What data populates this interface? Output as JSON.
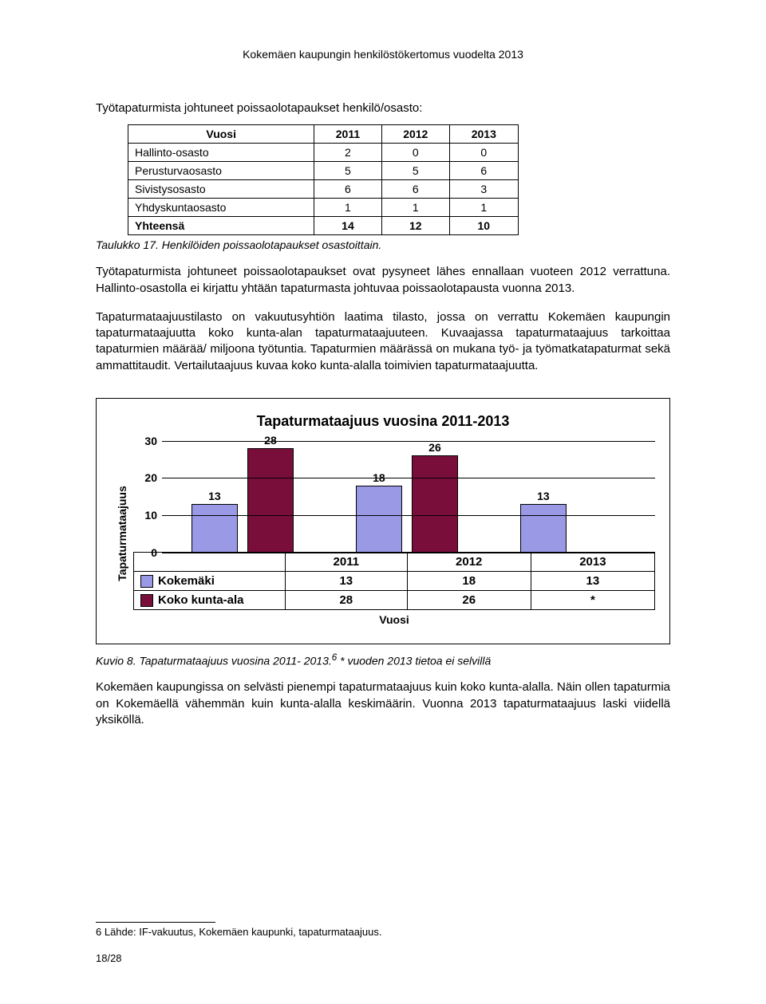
{
  "header_title": "Kokemäen kaupungin henkilöstökertomus vuodelta 2013",
  "section_heading": "Työtapaturmista johtuneet poissaolotapaukset henkilö/osasto:",
  "table1": {
    "header": [
      "Vuosi",
      "2011",
      "2012",
      "2013"
    ],
    "rows": [
      [
        "Hallinto-osasto",
        "2",
        "0",
        "0"
      ],
      [
        "Perusturvaosasto",
        "5",
        "5",
        "6"
      ],
      [
        "Sivistysosasto",
        "6",
        "6",
        "3"
      ],
      [
        "Yhdyskuntaosasto",
        "1",
        "1",
        "1"
      ]
    ],
    "total_row": [
      "Yhteensä",
      "14",
      "12",
      "10"
    ]
  },
  "table1_caption": "Taulukko 17. Henkilöiden poissaolotapaukset osastoittain.",
  "para1": "Työtapaturmista johtuneet poissaolotapaukset ovat pysyneet lähes ennallaan vuoteen 2012 verrattuna. Hallinto-osastolla ei kirjattu yhtään tapaturmasta johtuvaa poissaolotapausta vuonna 2013.",
  "para2": "Tapaturmataajuustilasto on vakuutusyhtiön laatima tilasto, jossa on verrattu Kokemäen kaupungin tapaturmataajuutta koko kunta-alan tapaturmataajuuteen. Kuvaajassa tapaturmataajuus tarkoittaa tapaturmien määrää/ miljoona työtuntia. Tapaturmien määrässä on mukana työ- ja työmatkatapaturmat sekä ammattitaudit. Vertailutaajuus kuvaa koko kunta-alalla toimivien tapaturmataajuutta.",
  "chart": {
    "title": "Tapaturmataajuus vuosina 2011-2013",
    "ylabel": "Tapaturmataajuus",
    "ymax": 30,
    "yticks": [
      0,
      10,
      20,
      30
    ],
    "categories": [
      "2011",
      "2012",
      "2013"
    ],
    "series": [
      {
        "name": "Kokemäki",
        "color": "#9999e6",
        "values": [
          13,
          18,
          13
        ],
        "labels": [
          "13",
          "18",
          "13"
        ]
      },
      {
        "name": "Koko kunta-ala",
        "color": "#7a0e3b",
        "values": [
          28,
          26,
          null
        ],
        "labels": [
          "28",
          "26",
          "*"
        ]
      }
    ],
    "xaxis_label": "Vuosi",
    "grid_color": "#000000",
    "background": "#ffffff"
  },
  "chart_caption_a": "Kuvio 8. Tapaturmataajuus vuosina 2011- 2013.",
  "chart_caption_sup": "6",
  "chart_caption_b": "   * vuoden 2013 tietoa ei selvillä",
  "para3": "Kokemäen kaupungissa on selvästi pienempi tapaturmataajuus kuin koko kunta-alalla. Näin ollen tapaturmia on Kokemäellä vähemmän kuin kunta-alalla keskimäärin. Vuonna 2013 tapaturmataajuus laski viidellä yksiköllä.",
  "footnote": "6 Lähde: IF-vakuutus, Kokemäen kaupunki, tapaturmataajuus.",
  "page_number": "18/28"
}
